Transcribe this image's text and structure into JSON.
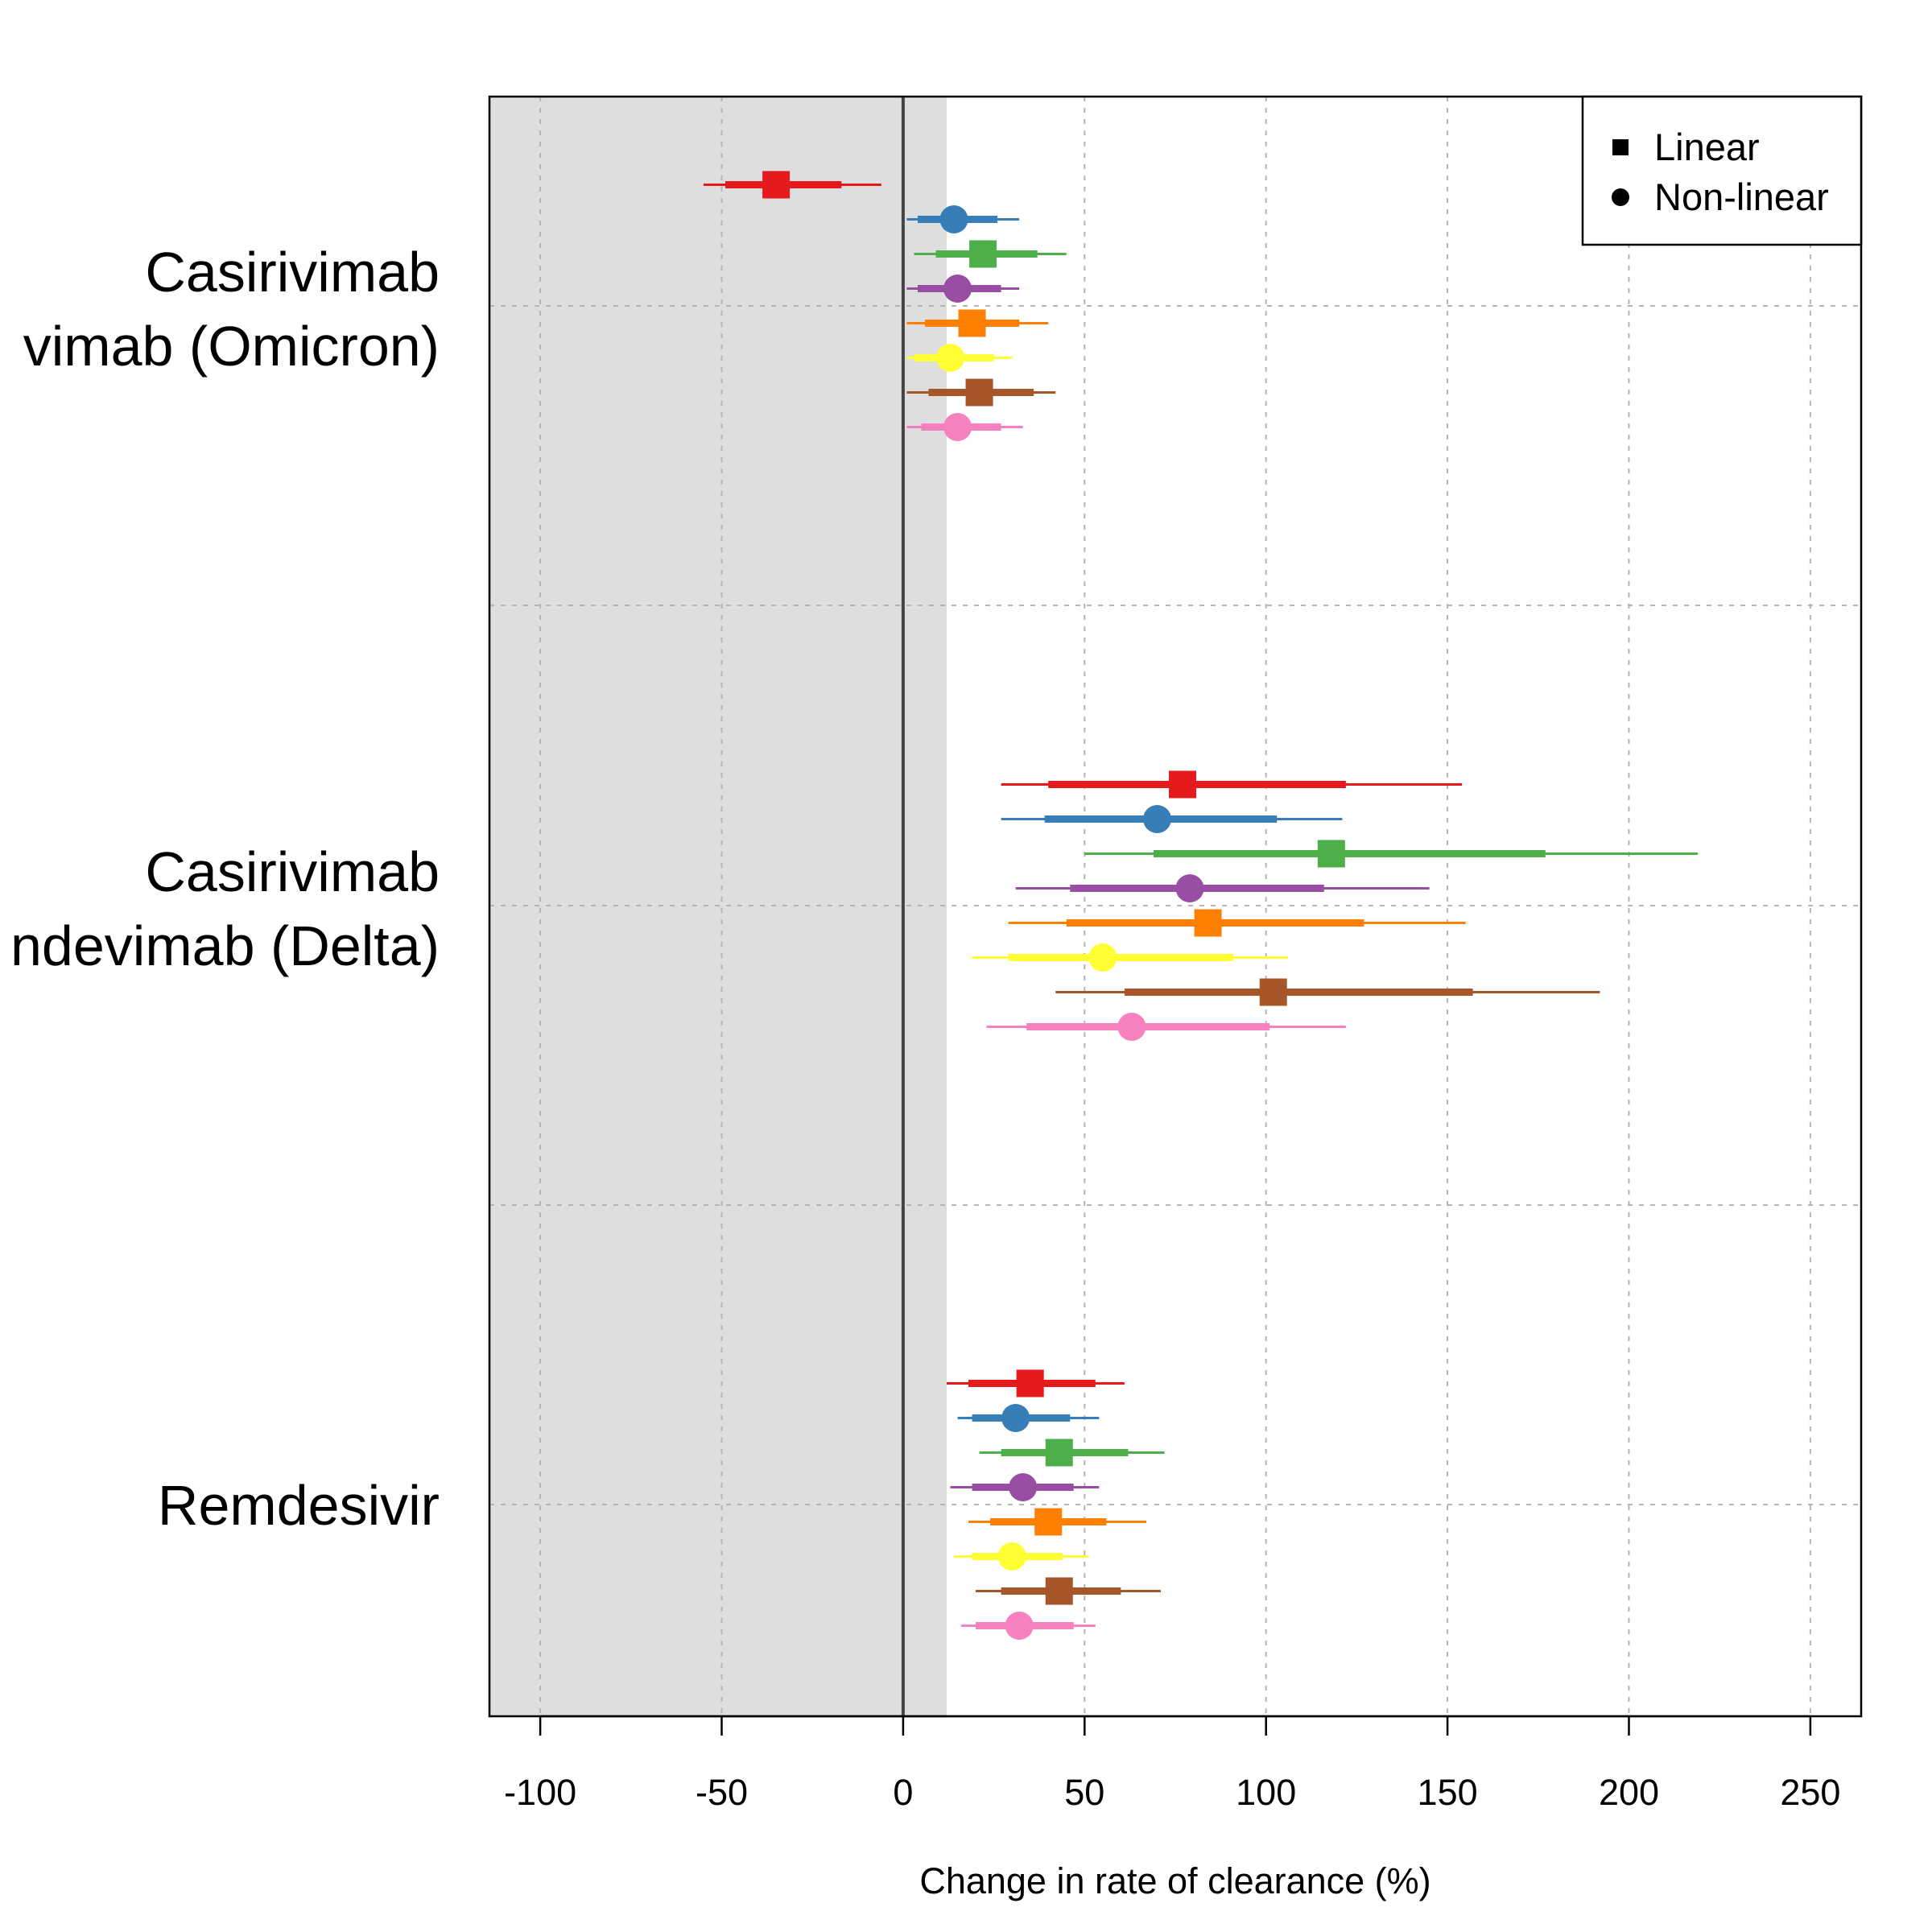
{
  "chart_data": {
    "type": "forest",
    "xlabel": "Change in rate of clearance (%)",
    "xlim": [
      -114,
      264
    ],
    "xticks": [
      "-100",
      "-50",
      "0",
      "50",
      "100",
      "150",
      "200",
      "250"
    ],
    "xtick_values": [
      -100,
      -50,
      0,
      50,
      100,
      150,
      200,
      250
    ],
    "grid": true,
    "shaded_region": [
      -114,
      12
    ],
    "reference_line": 0,
    "legend": {
      "placement": "top-right",
      "entries": [
        {
          "label": "Linear",
          "shape": "square"
        },
        {
          "label": "Non-linear",
          "shape": "circle"
        }
      ]
    },
    "colors": [
      "#E41A1C",
      "#377EB8",
      "#4DAF4A",
      "#984EA3",
      "#FF7F00",
      "#FFFF33",
      "#A65628",
      "#F781BF"
    ],
    "groups": [
      {
        "label_line1": "Casirivimab",
        "label_line2": "vimab (Omicron)",
        "rows": [
          {
            "shape": "square",
            "est": -35,
            "lo95": -55,
            "hi95": -6,
            "lo80": -49,
            "hi80": -17
          },
          {
            "shape": "circle",
            "est": 14,
            "lo95": 1,
            "hi95": 32,
            "lo80": 4,
            "hi80": 26
          },
          {
            "shape": "square",
            "est": 22,
            "lo95": 3,
            "hi95": 45,
            "lo80": 9,
            "hi80": 37
          },
          {
            "shape": "circle",
            "est": 15,
            "lo95": 1,
            "hi95": 32,
            "lo80": 4,
            "hi80": 27
          },
          {
            "shape": "square",
            "est": 19,
            "lo95": 1,
            "hi95": 40,
            "lo80": 6,
            "hi80": 32
          },
          {
            "shape": "circle",
            "est": 13,
            "lo95": 1,
            "hi95": 30,
            "lo80": 3,
            "hi80": 25
          },
          {
            "shape": "square",
            "est": 21,
            "lo95": 1,
            "hi95": 42,
            "lo80": 7,
            "hi80": 36
          },
          {
            "shape": "circle",
            "est": 15,
            "lo95": 1,
            "hi95": 33,
            "lo80": 5,
            "hi80": 27
          }
        ]
      },
      {
        "label_line1": "Casirivimab",
        "label_line2": "ndevimab (Delta)",
        "rows": [
          {
            "shape": "square",
            "est": 77,
            "lo95": 27,
            "hi95": 154,
            "lo80": 40,
            "hi80": 122
          },
          {
            "shape": "circle",
            "est": 70,
            "lo95": 27,
            "hi95": 121,
            "lo80": 39,
            "hi80": 103
          },
          {
            "shape": "square",
            "est": 118,
            "lo95": 50,
            "hi95": 219,
            "lo80": 69,
            "hi80": 177
          },
          {
            "shape": "circle",
            "est": 79,
            "lo95": 31,
            "hi95": 145,
            "lo80": 46,
            "hi80": 116
          },
          {
            "shape": "square",
            "est": 84,
            "lo95": 29,
            "hi95": 155,
            "lo80": 45,
            "hi80": 127
          },
          {
            "shape": "circle",
            "est": 55,
            "lo95": 19,
            "hi95": 106,
            "lo80": 29,
            "hi80": 91
          },
          {
            "shape": "square",
            "est": 102,
            "lo95": 42,
            "hi95": 192,
            "lo80": 61,
            "hi80": 157
          },
          {
            "shape": "circle",
            "est": 63,
            "lo95": 23,
            "hi95": 122,
            "lo80": 34,
            "hi80": 101
          }
        ]
      },
      {
        "label_line1": "Remdesivir",
        "label_line2": "",
        "rows": [
          {
            "shape": "square",
            "est": 35,
            "lo95": 12,
            "hi95": 61,
            "lo80": 18,
            "hi80": 53
          },
          {
            "shape": "circle",
            "est": 31,
            "lo95": 15,
            "hi95": 54,
            "lo80": 19,
            "hi80": 46
          },
          {
            "shape": "square",
            "est": 43,
            "lo95": 21,
            "hi95": 72,
            "lo80": 27,
            "hi80": 62
          },
          {
            "shape": "circle",
            "est": 33,
            "lo95": 13,
            "hi95": 54,
            "lo80": 19,
            "hi80": 47
          },
          {
            "shape": "square",
            "est": 40,
            "lo95": 18,
            "hi95": 67,
            "lo80": 24,
            "hi80": 56
          },
          {
            "shape": "circle",
            "est": 30,
            "lo95": 14,
            "hi95": 51,
            "lo80": 19,
            "hi80": 44
          },
          {
            "shape": "square",
            "est": 43,
            "lo95": 20,
            "hi95": 71,
            "lo80": 27,
            "hi80": 60
          },
          {
            "shape": "circle",
            "est": 32,
            "lo95": 16,
            "hi95": 53,
            "lo80": 20,
            "hi80": 47
          }
        ]
      }
    ]
  }
}
